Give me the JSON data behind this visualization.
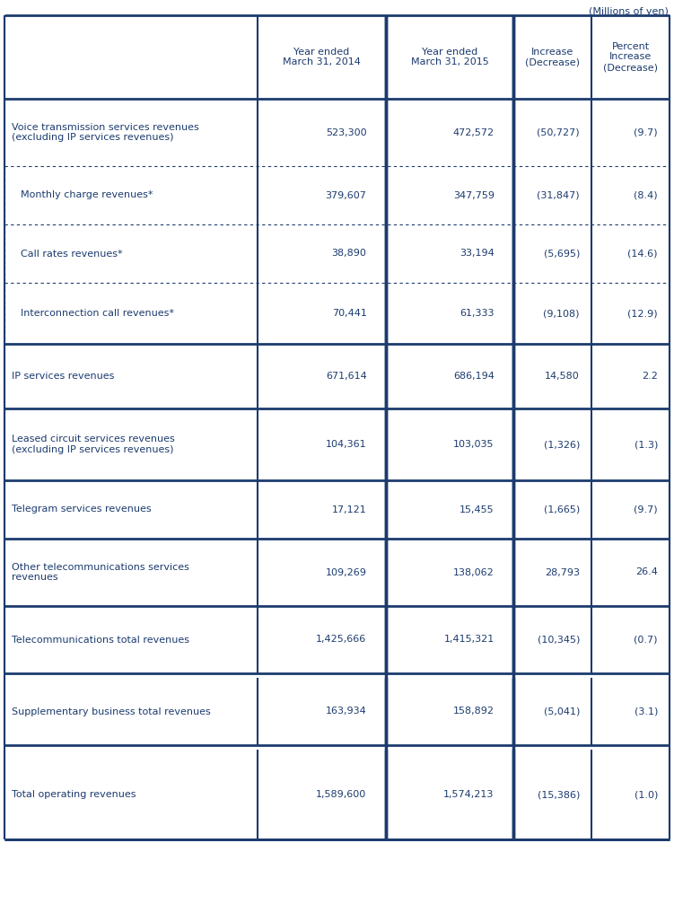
{
  "caption": "(Millions of yen)",
  "headers": [
    "",
    "Year ended\nMarch 31, 2014",
    "Year ended\nMarch 31, 2015",
    "Increase\n(Decrease)",
    "Percent\nIncrease\n(Decrease)"
  ],
  "rows": [
    {
      "label": "Voice transmission services revenues\n(excluding IP services revenues)",
      "values": [
        "523,300",
        "472,572",
        "(50,727)",
        "(9.7)"
      ],
      "indent": false,
      "bold_top": true,
      "dotted_top": false,
      "bold_bottom": false
    },
    {
      "label": "Monthly charge revenues*",
      "values": [
        "379,607",
        "347,759",
        "(31,847)",
        "(8.4)"
      ],
      "indent": true,
      "bold_top": false,
      "dotted_top": true,
      "bold_bottom": false
    },
    {
      "label": "Call rates revenues*",
      "values": [
        "38,890",
        "33,194",
        "(5,695)",
        "(14.6)"
      ],
      "indent": true,
      "bold_top": false,
      "dotted_top": true,
      "bold_bottom": false
    },
    {
      "label": "Interconnection call revenues*",
      "values": [
        "70,441",
        "61,333",
        "(9,108)",
        "(12.9)"
      ],
      "indent": true,
      "bold_top": false,
      "dotted_top": true,
      "bold_bottom": false
    },
    {
      "label": "IP services revenues",
      "values": [
        "671,614",
        "686,194",
        "14,580",
        "2.2"
      ],
      "indent": false,
      "bold_top": true,
      "dotted_top": false,
      "bold_bottom": false
    },
    {
      "label": "Leased circuit services revenues\n(excluding IP services revenues)",
      "values": [
        "104,361",
        "103,035",
        "(1,326)",
        "(1.3)"
      ],
      "indent": false,
      "bold_top": true,
      "dotted_top": false,
      "bold_bottom": false
    },
    {
      "label": "Telegram services revenues",
      "values": [
        "17,121",
        "15,455",
        "(1,665)",
        "(9.7)"
      ],
      "indent": false,
      "bold_top": true,
      "dotted_top": false,
      "bold_bottom": false
    },
    {
      "label": "Other telecommunications services\nrevenues",
      "values": [
        "109,269",
        "138,062",
        "28,793",
        "26.4"
      ],
      "indent": false,
      "bold_top": true,
      "dotted_top": false,
      "bold_bottom": false
    },
    {
      "label": "Telecommunications total revenues",
      "values": [
        "1,425,666",
        "1,415,321",
        "(10,345)",
        "(0.7)"
      ],
      "indent": false,
      "bold_top": true,
      "dotted_top": false,
      "bold_bottom": true
    },
    {
      "label": "Supplementary business total revenues",
      "values": [
        "163,934",
        "158,892",
        "(5,041)",
        "(3.1)"
      ],
      "indent": false,
      "bold_top": false,
      "dotted_top": false,
      "bold_bottom": true
    },
    {
      "label": "Total operating revenues",
      "values": [
        "1,589,600",
        "1,574,213",
        "(15,386)",
        "(1.0)"
      ],
      "indent": false,
      "bold_top": false,
      "dotted_top": false,
      "bold_bottom": true
    }
  ],
  "text_color": "#1c3b6e",
  "bold_lc": "#1c3b6e",
  "dotted_lc": "#1c3b6e",
  "bg_color": "#ffffff",
  "font_size": 8.0,
  "header_font_size": 8.0,
  "caption_font_size": 8.0,
  "col2_thick": true
}
